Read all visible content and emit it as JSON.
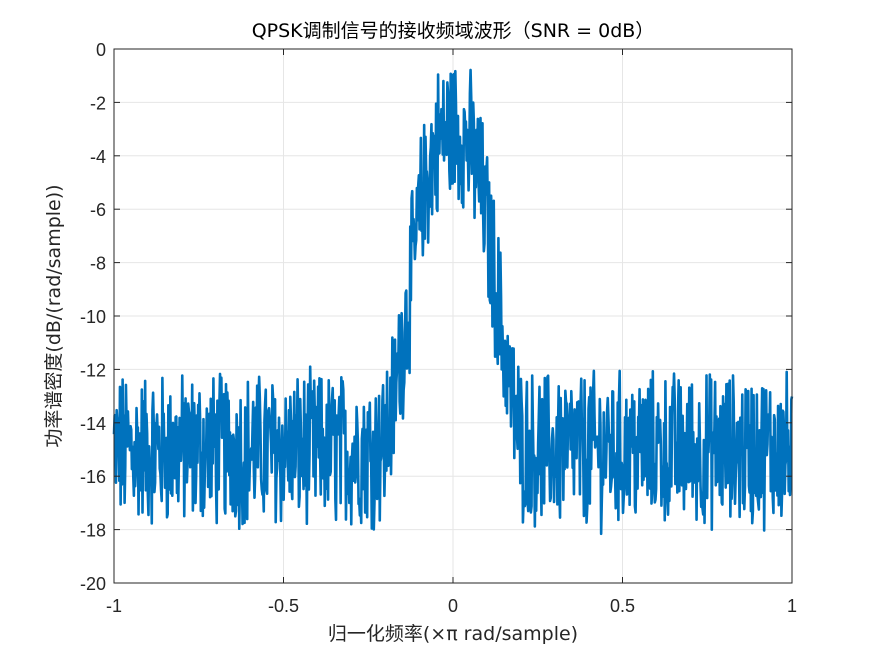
{
  "chart_data": {
    "type": "line",
    "title": "QPSK调制信号的接收频域波形（SNR = 0dB）",
    "xlabel": "归一化频率(×π rad/sample)",
    "ylabel": "功率谱密度(dB/(rad/sample))",
    "xlim": [
      -1,
      1
    ],
    "ylim": [
      -20,
      0
    ],
    "xticks": [
      -1,
      -0.5,
      0,
      0.5,
      1
    ],
    "xtick_labels": [
      "-1",
      "-0.5",
      "0",
      "0.5",
      "1"
    ],
    "yticks": [
      0,
      -2,
      -4,
      -6,
      -8,
      -10,
      -12,
      -14,
      -16,
      -18,
      -20
    ],
    "ytick_labels": [
      "0",
      "-2",
      "-4",
      "-6",
      "-8",
      "-10",
      "-12",
      "-14",
      "-16",
      "-18",
      "-20"
    ],
    "grid": true,
    "line_color": "#0072BD",
    "series": [
      {
        "x": [
          -1,
          -0.9,
          -0.8,
          -0.7,
          -0.6,
          -0.5,
          -0.4,
          -0.3,
          -0.25,
          -0.2,
          -0.18,
          -0.16,
          -0.14,
          -0.12,
          -0.1,
          -0.08,
          -0.06,
          -0.04,
          -0.02,
          0,
          0.02,
          0.04,
          0.06,
          0.08,
          0.1,
          0.12,
          0.14,
          0.16,
          0.18,
          0.2,
          0.25,
          0.3,
          0.4,
          0.5,
          0.6,
          0.7,
          0.8,
          0.9,
          1
        ],
        "y": [
          -15,
          -15,
          -15,
          -15,
          -15,
          -15,
          -15,
          -15,
          -15,
          -14.8,
          -13.5,
          -12.0,
          -10.2,
          -8.3,
          -6.5,
          -5.0,
          -4.0,
          -3.4,
          -3.1,
          -3.0,
          -3.1,
          -3.4,
          -4.0,
          -5.0,
          -6.5,
          -8.3,
          -10.2,
          -12.0,
          -13.5,
          -14.8,
          -15,
          -15,
          -15,
          -15,
          -15,
          -15,
          -15,
          -15,
          -15
        ],
        "noise_range_db": [
          -20,
          0
        ]
      }
    ]
  },
  "colors": {
    "line": "#0072BD",
    "grid": "#e6e6e6",
    "axis": "#262626",
    "background": "#ffffff"
  }
}
